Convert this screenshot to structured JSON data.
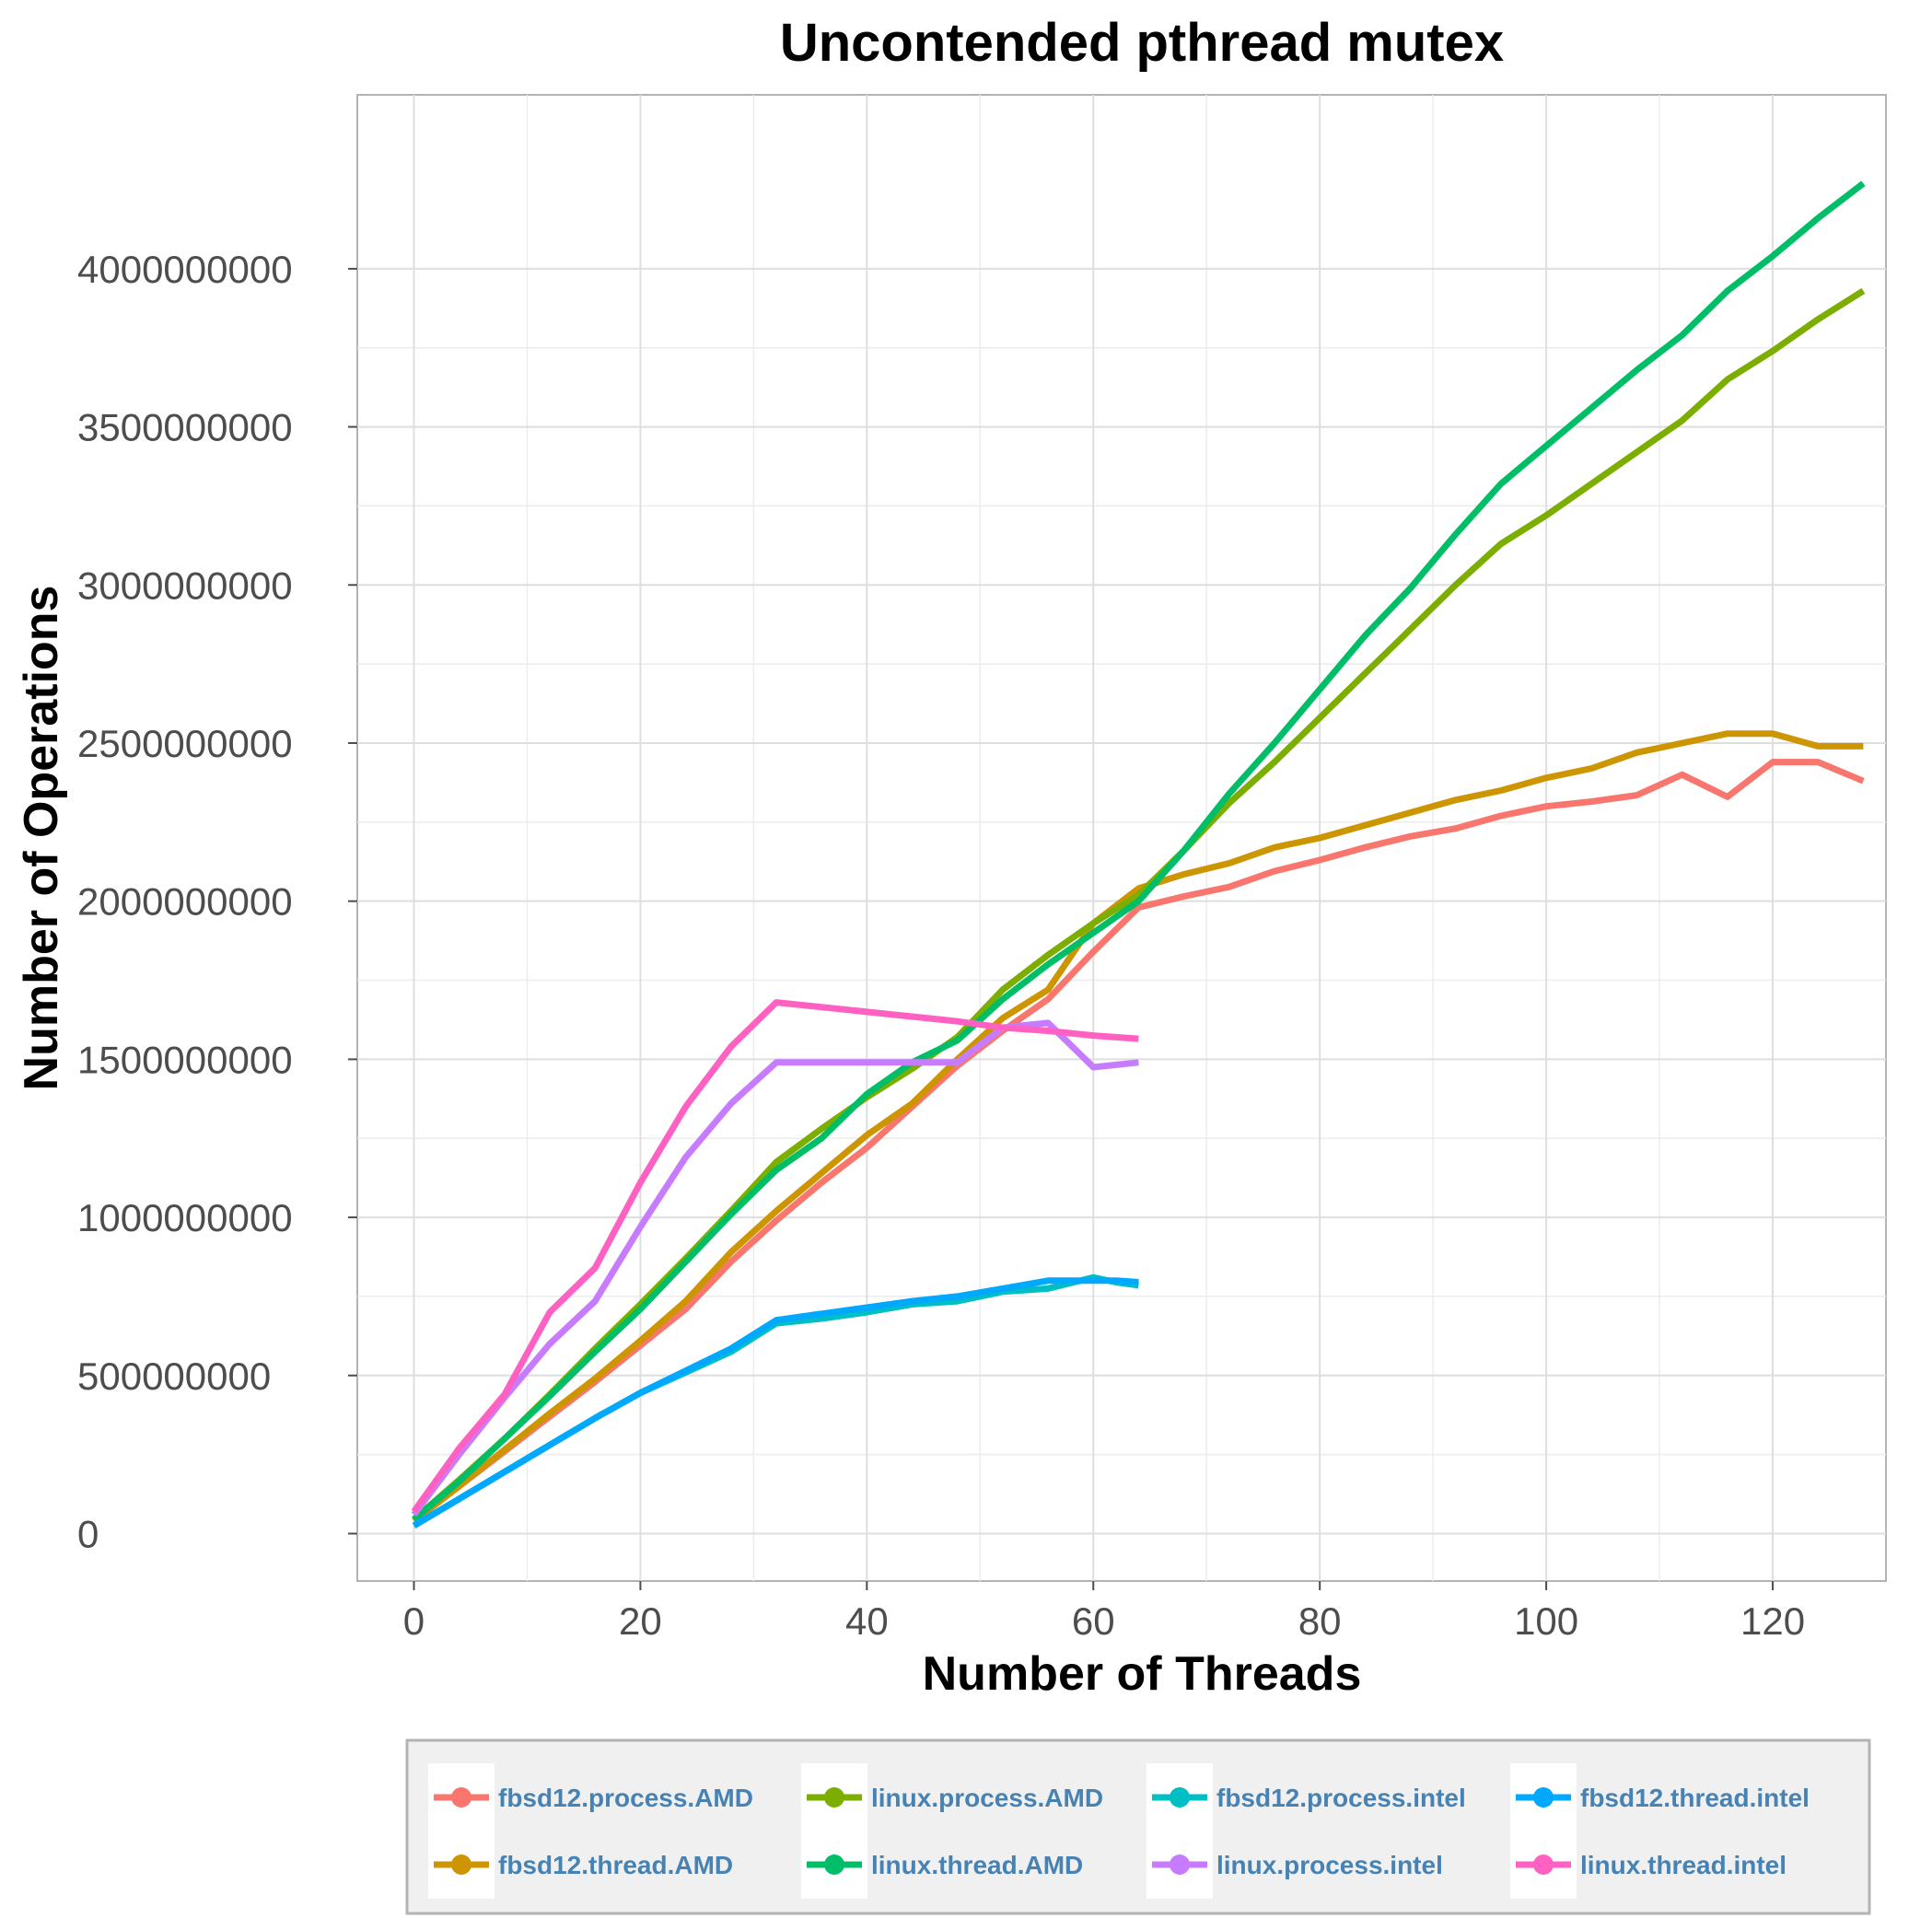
{
  "chart_data": {
    "type": "line",
    "title": "Uncontended pthread mutex",
    "xlabel": "Number of Threads",
    "ylabel": "Number of Operations",
    "xlim": [
      -5,
      130
    ],
    "ylim": [
      -150000000,
      4550000000
    ],
    "x_ticks": [
      0,
      20,
      40,
      60,
      80,
      100,
      120
    ],
    "x_tick_labels": [
      "0",
      "20",
      "40",
      "60",
      "80",
      "100",
      "120"
    ],
    "y_ticks": [
      0,
      500000000,
      1000000000,
      1500000000,
      2000000000,
      2500000000,
      3000000000,
      3500000000,
      4000000000
    ],
    "y_tick_labels": [
      "0",
      "500000000",
      "1000000000",
      "1500000000",
      "2000000000",
      "2500000000",
      "3000000000",
      "3500000000",
      "4000000000"
    ],
    "grid": true,
    "legend_position": "bottom",
    "series": [
      {
        "name": "fbsd12.process.AMD",
        "color": "#f8766d",
        "x": [
          0,
          4,
          8,
          12,
          16,
          20,
          24,
          28,
          32,
          36,
          40,
          44,
          48,
          52,
          56,
          60,
          64,
          68,
          72,
          76,
          80,
          84,
          88,
          92,
          96,
          100,
          104,
          108,
          112,
          116,
          120,
          124,
          128
        ],
        "y": [
          40000000,
          150000000,
          260000000,
          370000000,
          480000000,
          595000000,
          710000000,
          860000000,
          990000000,
          1110000000,
          1220000000,
          1350000000,
          1480000000,
          1590000000,
          1690000000,
          1840000000,
          1980000000,
          2015000000,
          2045000000,
          2095000000,
          2130000000,
          2170000000,
          2205000000,
          2230000000,
          2270000000,
          2300000000,
          2315000000,
          2335000000,
          2400000000,
          2330000000,
          2440000000,
          2440000000,
          2380000000
        ]
      },
      {
        "name": "fbsd12.thread.AMD",
        "color": "#cd9600",
        "x": [
          0,
          4,
          8,
          12,
          16,
          20,
          24,
          28,
          32,
          36,
          40,
          44,
          48,
          52,
          56,
          60,
          64,
          68,
          72,
          76,
          80,
          84,
          88,
          92,
          96,
          100,
          104,
          108,
          112,
          116,
          120,
          124,
          128
        ],
        "y": [
          40000000,
          150000000,
          265000000,
          380000000,
          490000000,
          610000000,
          735000000,
          890000000,
          1020000000,
          1140000000,
          1260000000,
          1360000000,
          1500000000,
          1630000000,
          1720000000,
          1930000000,
          2040000000,
          2085000000,
          2120000000,
          2170000000,
          2200000000,
          2240000000,
          2280000000,
          2320000000,
          2350000000,
          2390000000,
          2420000000,
          2470000000,
          2500000000,
          2530000000,
          2530000000,
          2490000000,
          2490000000
        ]
      },
      {
        "name": "linux.process.AMD",
        "color": "#7cae00",
        "x": [
          0,
          4,
          8,
          12,
          16,
          20,
          24,
          28,
          32,
          36,
          40,
          44,
          48,
          52,
          56,
          60,
          64,
          68,
          72,
          76,
          80,
          84,
          88,
          92,
          96,
          100,
          104,
          108,
          112,
          116,
          120,
          124,
          128
        ],
        "y": [
          45000000,
          170000000,
          300000000,
          440000000,
          585000000,
          725000000,
          870000000,
          1020000000,
          1175000000,
          1280000000,
          1380000000,
          1470000000,
          1570000000,
          1720000000,
          1830000000,
          1930000000,
          2020000000,
          2160000000,
          2310000000,
          2440000000,
          2580000000,
          2720000000,
          2860000000,
          3000000000,
          3130000000,
          3220000000,
          3320000000,
          3420000000,
          3520000000,
          3650000000,
          3740000000,
          3840000000,
          3930000000
        ]
      },
      {
        "name": "linux.thread.AMD",
        "color": "#00be67",
        "x": [
          0,
          4,
          8,
          12,
          16,
          20,
          24,
          28,
          32,
          36,
          40,
          44,
          48,
          52,
          56,
          60,
          64,
          68,
          72,
          76,
          80,
          84,
          88,
          92,
          96,
          100,
          104,
          108,
          112,
          116,
          120,
          124,
          128
        ],
        "y": [
          45000000,
          165000000,
          300000000,
          435000000,
          575000000,
          710000000,
          860000000,
          1010000000,
          1150000000,
          1250000000,
          1390000000,
          1490000000,
          1560000000,
          1690000000,
          1800000000,
          1900000000,
          2000000000,
          2160000000,
          2340000000,
          2500000000,
          2670000000,
          2840000000,
          2990000000,
          3160000000,
          3320000000,
          3440000000,
          3560000000,
          3680000000,
          3790000000,
          3930000000,
          4040000000,
          4160000000,
          4270000000
        ]
      },
      {
        "name": "fbsd12.process.intel",
        "color": "#00bfc4",
        "x": [
          0,
          4,
          8,
          12,
          16,
          20,
          24,
          28,
          32,
          36,
          40,
          44,
          48,
          52,
          56,
          60,
          62,
          64
        ],
        "y": [
          25000000,
          110000000,
          195000000,
          280000000,
          365000000,
          445000000,
          510000000,
          575000000,
          665000000,
          680000000,
          700000000,
          725000000,
          735000000,
          765000000,
          775000000,
          810000000,
          795000000,
          785000000
        ]
      },
      {
        "name": "linux.process.intel",
        "color": "#c77cff",
        "x": [
          0,
          4,
          8,
          12,
          16,
          20,
          24,
          28,
          32,
          36,
          40,
          44,
          48,
          52,
          56,
          60,
          64
        ],
        "y": [
          60000000,
          250000000,
          430000000,
          600000000,
          735000000,
          970000000,
          1190000000,
          1360000000,
          1490000000,
          1490000000,
          1490000000,
          1490000000,
          1490000000,
          1600000000,
          1615000000,
          1475000000,
          1490000000
        ]
      },
      {
        "name": "fbsd12.thread.intel",
        "color": "#00a9ff",
        "x": [
          0,
          4,
          8,
          12,
          16,
          20,
          24,
          28,
          32,
          36,
          40,
          44,
          48,
          52,
          56,
          60,
          62,
          64
        ],
        "y": [
          25000000,
          110000000,
          195000000,
          280000000,
          365000000,
          445000000,
          515000000,
          585000000,
          675000000,
          695000000,
          715000000,
          735000000,
          750000000,
          775000000,
          800000000,
          800000000,
          800000000,
          795000000
        ]
      },
      {
        "name": "linux.thread.intel",
        "color": "#ff61c3",
        "x": [
          0,
          4,
          8,
          12,
          16,
          20,
          24,
          28,
          32,
          36,
          40,
          44,
          48,
          52,
          56,
          60,
          64
        ],
        "y": [
          70000000,
          270000000,
          440000000,
          700000000,
          840000000,
          1110000000,
          1350000000,
          1540000000,
          1680000000,
          1665000000,
          1650000000,
          1635000000,
          1620000000,
          1600000000,
          1590000000,
          1575000000,
          1565000000
        ]
      }
    ]
  }
}
